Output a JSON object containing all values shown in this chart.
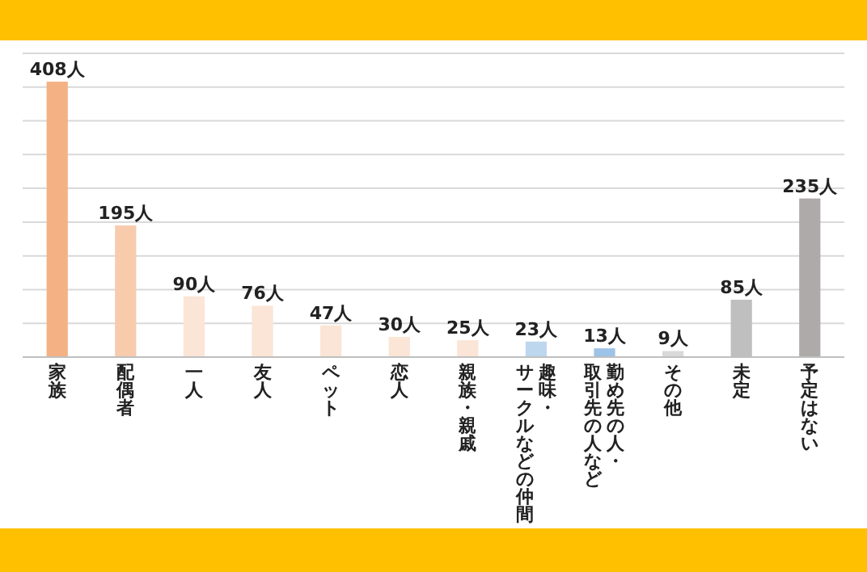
{
  "chart_data": {
    "type": "bar",
    "categories": [
      "家族",
      "配偶者",
      "一人",
      "友人",
      "ペット",
      "恋人",
      "親族・親戚",
      "趣味・サークルなどの仲間",
      "勤め先の人・取引先の人など",
      "その他",
      "未定",
      "予定はない"
    ],
    "values": [
      408,
      195,
      90,
      76,
      47,
      30,
      25,
      23,
      13,
      9,
      85,
      235
    ],
    "colors": [
      "#f4b183",
      "#f8cbad",
      "#fbe5d6",
      "#fbe5d6",
      "#fbe5d6",
      "#fbe5d6",
      "#fbe5d6",
      "#bdd7ee",
      "#9dc3e6",
      "#d9d9d9",
      "#bfbfbf",
      "#aeaaaa"
    ],
    "value_labels": [
      "408人",
      "195人",
      "90人",
      "76人",
      "47人",
      "30人",
      "25人",
      "23人",
      "13人",
      "9人",
      "85人",
      "235人"
    ],
    "ylim": [
      0,
      450
    ],
    "yticks": [
      {
        "value": 0,
        "label": null
      },
      {
        "value": 50,
        "label": null
      },
      {
        "value": 100,
        "label": null
      },
      {
        "value": 150,
        "label": null
      },
      {
        "value": 200,
        "label": null
      },
      {
        "value": 250,
        "label": null
      },
      {
        "value": 300,
        "label": null
      },
      {
        "value": 350,
        "label": null
      },
      {
        "value": 400,
        "label": null
      },
      {
        "value": 450,
        "label": null
      }
    ],
    "grid": "y",
    "tick_labels": "x"
  }
}
